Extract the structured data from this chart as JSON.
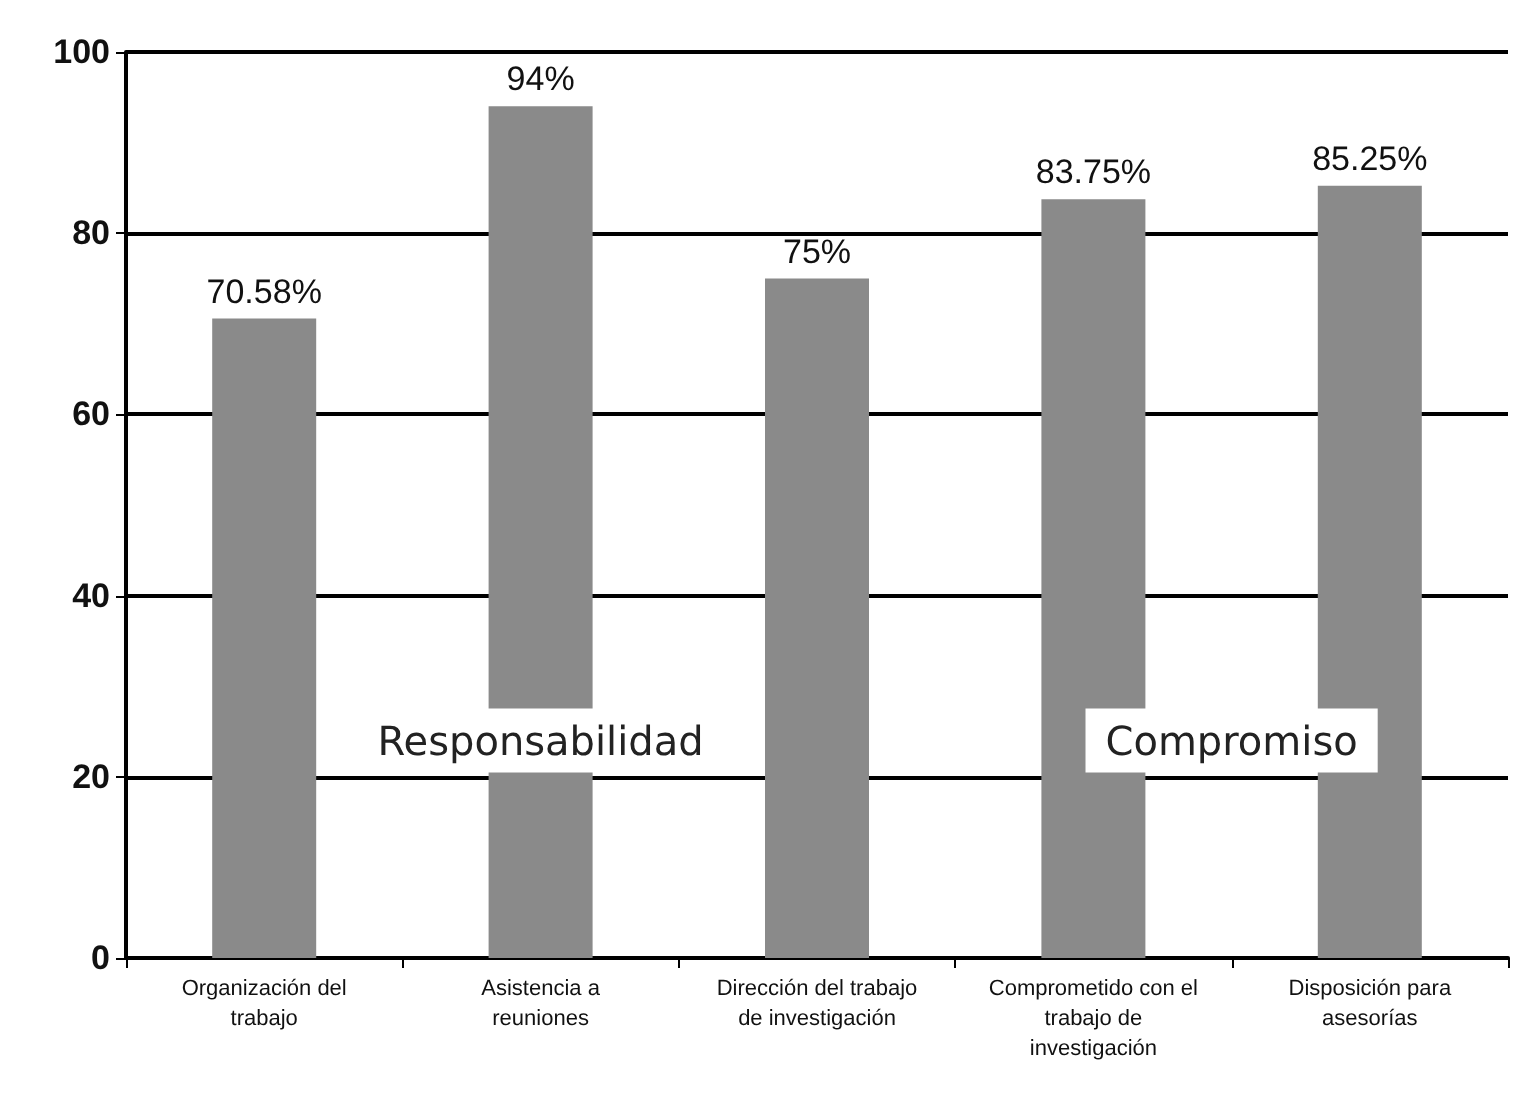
{
  "chart_data": {
    "type": "bar",
    "categories": [
      "Organización del\ntrabajo",
      "Asistencia a\nreuniones",
      "Dirección del trabajo\nde investigación",
      "Comprometido con el\ntrabajo de\ninvestigación",
      "Disposición para\nasesorías"
    ],
    "values": [
      70.58,
      94,
      75,
      83.75,
      85.25
    ],
    "value_labels": [
      "70.58%",
      "94%",
      "75%",
      "83.75%",
      "85.25%"
    ],
    "color": "#8a8a8a",
    "ylim": [
      0,
      100
    ],
    "yticks": [
      0,
      20,
      40,
      60,
      80,
      100
    ],
    "grid": "y",
    "annotations": [
      "Responsabilidad",
      "Compromiso"
    ]
  }
}
